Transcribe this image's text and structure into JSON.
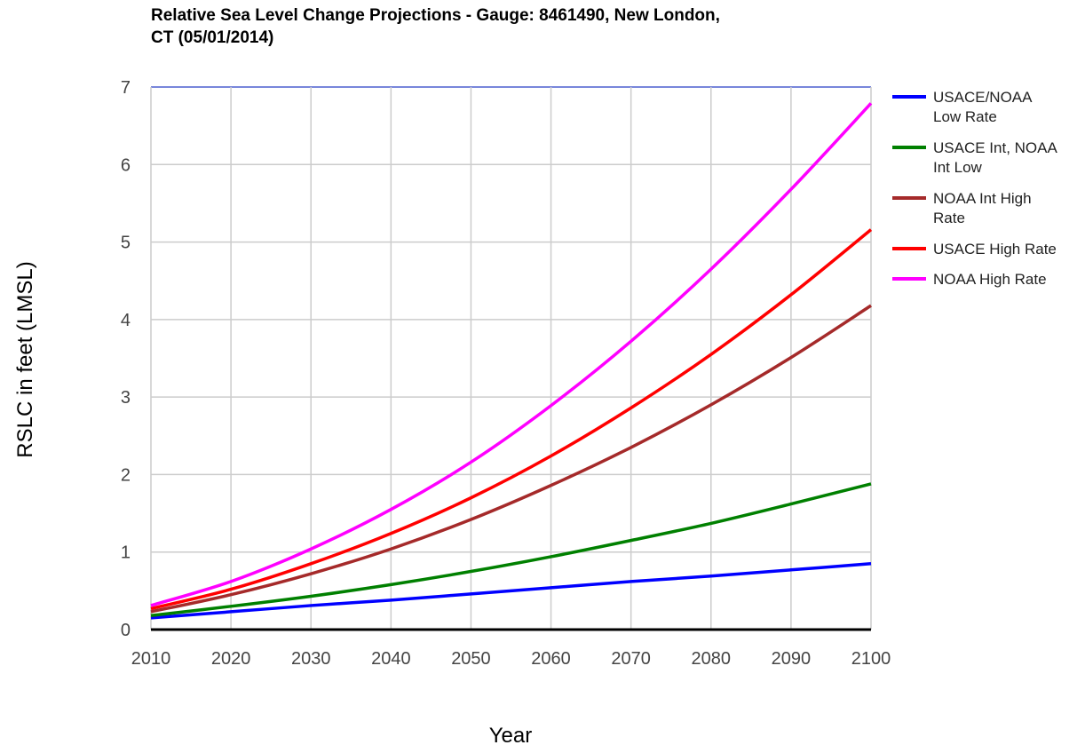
{
  "chart_data": {
    "type": "line",
    "title_line1": "Relative Sea Level Change Projections - Gauge: 8461490, New London,",
    "title_line2": "CT (05/01/2014)",
    "xlabel": "Year",
    "ylabel": "RSLC in feet (LMSL)",
    "xlim": [
      2010,
      2100
    ],
    "ylim": [
      0,
      7
    ],
    "x_ticks": [
      "2010",
      "2020",
      "2030",
      "2040",
      "2050",
      "2060",
      "2070",
      "2080",
      "2090",
      "2100"
    ],
    "y_ticks": [
      "0",
      "1",
      "2",
      "3",
      "4",
      "5",
      "6",
      "7"
    ],
    "grid": true,
    "legend_position": "right",
    "x": [
      2010,
      2020,
      2030,
      2040,
      2050,
      2060,
      2070,
      2080,
      2090,
      2100
    ],
    "series": [
      {
        "name": "USACE/NOAA Low Rate",
        "legend_lines": [
          "USACE/NOAA",
          "Low Rate"
        ],
        "color": "#0000ff",
        "values": [
          0.15,
          0.23,
          0.31,
          0.38,
          0.46,
          0.54,
          0.62,
          0.69,
          0.77,
          0.85
        ]
      },
      {
        "name": "USACE Int, NOAA Int Low",
        "legend_lines": [
          "USACE Int, NOAA",
          "Int Low"
        ],
        "color": "#008000",
        "values": [
          0.18,
          0.3,
          0.43,
          0.58,
          0.75,
          0.94,
          1.15,
          1.37,
          1.62,
          1.88
        ]
      },
      {
        "name": "NOAA Int High Rate",
        "legend_lines": [
          "NOAA Int High",
          "Rate"
        ],
        "color": "#a52a2a",
        "values": [
          0.23,
          0.45,
          0.72,
          1.04,
          1.42,
          1.86,
          2.35,
          2.9,
          3.51,
          4.18
        ]
      },
      {
        "name": "USACE High Rate",
        "legend_lines": [
          "USACE High Rate"
        ],
        "color": "#ff0000",
        "values": [
          0.27,
          0.52,
          0.85,
          1.24,
          1.7,
          2.24,
          2.86,
          3.55,
          4.32,
          5.16
        ]
      },
      {
        "name": "NOAA High Rate",
        "legend_lines": [
          "NOAA High Rate"
        ],
        "color": "#ff00ff",
        "values": [
          0.31,
          0.62,
          1.04,
          1.55,
          2.16,
          2.89,
          3.72,
          4.65,
          5.68,
          6.79
        ]
      }
    ]
  }
}
